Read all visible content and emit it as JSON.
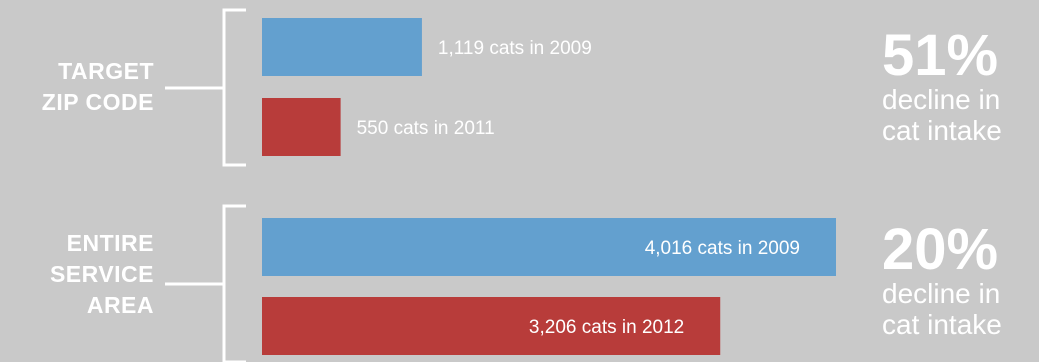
{
  "chart_data": {
    "type": "bar",
    "orientation": "horizontal",
    "groups": [
      {
        "label_lines": [
          "TARGET",
          "ZIP CODE"
        ],
        "bars": [
          {
            "value": 1119,
            "label": "1,119 cats in 2009",
            "color": "#63a0cf"
          },
          {
            "value": 550,
            "label": "550 cats in 2011",
            "color": "#b83c3a"
          }
        ],
        "stat_percent": "51%",
        "stat_text_lines": [
          "decline in",
          "cat intake"
        ]
      },
      {
        "label_lines": [
          "ENTIRE",
          "SERVICE",
          "AREA"
        ],
        "bars": [
          {
            "value": 4016,
            "label": "4,016 cats in 2009",
            "color": "#63a0cf"
          },
          {
            "value": 3206,
            "label": "3,206 cats in 2012",
            "color": "#b83c3a"
          }
        ],
        "stat_percent": "20%",
        "stat_text_lines": [
          "decline in",
          "cat intake"
        ]
      }
    ],
    "background": "#c9c9c9",
    "text_color": "#ffffff"
  }
}
